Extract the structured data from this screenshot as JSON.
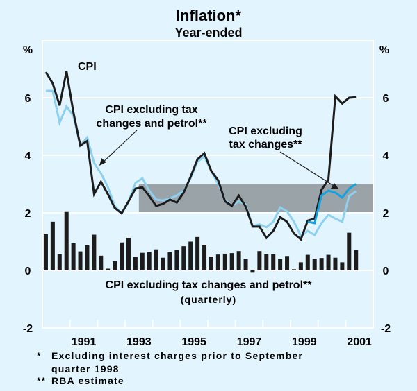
{
  "chart_data": {
    "type": "line",
    "title": "Inflation*",
    "subtitle": "Year-ended",
    "ylabel_left": "%",
    "ylabel_right": "%",
    "ylim": [
      -2,
      8
    ],
    "yticks": [
      -2,
      0,
      2,
      4,
      6
    ],
    "xlim": [
      1990,
      2002
    ],
    "xtick_labels": [
      "1991",
      "1993",
      "1995",
      "1997",
      "1999",
      "2001"
    ],
    "xtick_label_years": [
      1991,
      1993,
      1995,
      1997,
      1999,
      2001
    ],
    "frequency": "quarterly",
    "start": "1990Q1",
    "end": "2001Q2",
    "target_band": {
      "low": 2,
      "high": 3,
      "start": 1993.5,
      "end": 2002,
      "color": "#9aa3a8"
    },
    "series": [
      {
        "name": "CPI",
        "kind": "line",
        "color": "#1c1c1c",
        "start_index": 0,
        "values": [
          6.89,
          6.5,
          5.73,
          6.92,
          5.5,
          4.34,
          4.5,
          2.65,
          3.08,
          2.65,
          2.17,
          1.98,
          2.4,
          2.84,
          2.89,
          2.58,
          2.24,
          2.31,
          2.46,
          2.36,
          2.7,
          3.25,
          3.86,
          4.07,
          3.45,
          3.13,
          2.4,
          2.24,
          2.6,
          2.22,
          1.52,
          1.52,
          1.13,
          1.37,
          1.85,
          1.69,
          1.28,
          1.08,
          1.73,
          1.8,
          2.8,
          3.15,
          6.05,
          5.8,
          6.0,
          6.02
        ]
      },
      {
        "name": "CPI excluding tax changes and petrol**",
        "kind": "line",
        "color": "#8dd0f0",
        "start_index": 0,
        "values": [
          6.24,
          6.24,
          5.13,
          5.7,
          5.37,
          4.34,
          4.62,
          3.73,
          3.37,
          2.9,
          2.24,
          1.98,
          2.4,
          3.04,
          3.2,
          2.77,
          2.46,
          2.43,
          2.5,
          2.6,
          2.77,
          3.2,
          3.78,
          3.95,
          3.45,
          3.0,
          2.46,
          2.24,
          2.4,
          2.29,
          1.54,
          1.6,
          1.5,
          1.69,
          2.19,
          2.05,
          1.69,
          1.2,
          1.37,
          1.23,
          1.64,
          1.93,
          1.8,
          1.69,
          2.58,
          2.75
        ]
      },
      {
        "name": "CPI excluding tax changes**",
        "kind": "line",
        "color": "#14a2e0",
        "start_index": 38,
        "values": [
          1.69,
          1.64,
          2.6,
          2.77,
          2.7,
          2.53,
          2.84,
          3.0
        ]
      },
      {
        "name": "CPI excluding tax changes and petrol** (quarterly)",
        "kind": "bar",
        "color": "#1c1c1c",
        "start_index": 0,
        "values": [
          1.26,
          1.69,
          0.56,
          2.03,
          0.94,
          0.66,
          0.87,
          1.24,
          0.51,
          0.06,
          0.32,
          0.97,
          1.12,
          0.47,
          0.61,
          0.63,
          0.73,
          0.44,
          0.63,
          0.7,
          0.84,
          1.0,
          1.16,
          0.88,
          0.48,
          0.55,
          0.58,
          0.6,
          0.67,
          0.4,
          -0.08,
          0.67,
          0.56,
          0.56,
          0.39,
          0.5,
          0.04,
          0.28,
          0.54,
          0.4,
          0.43,
          0.54,
          0.44,
          0.28,
          1.31,
          0.71
        ]
      }
    ],
    "annotations": {
      "cpi": "CPI",
      "excl_tax_petrol_l1": "CPI excluding tax",
      "excl_tax_petrol_l2": "changes and petrol**",
      "excl_tax_l1": "CPI excluding",
      "excl_tax_l2": "tax changes**",
      "bars_l1": "CPI excluding tax changes and petrol**",
      "bars_l2": "(quarterly)"
    },
    "footnotes": [
      {
        "mark": "*",
        "line1": "Excluding interest charges prior to September",
        "line2": "quarter 1998"
      },
      {
        "mark": "**",
        "line1": "RBA estimate",
        "line2": ""
      }
    ]
  }
}
